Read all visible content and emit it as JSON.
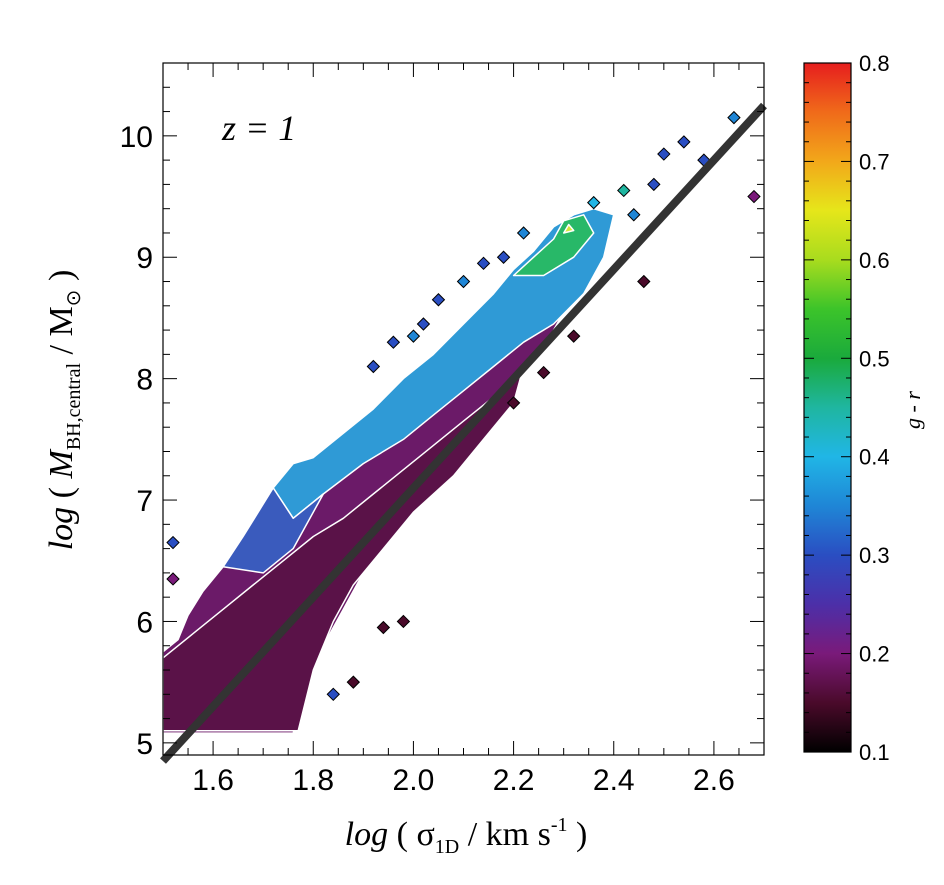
{
  "chart_data": {
    "type": "heatmap",
    "title": "",
    "annotation": "z = 1",
    "xlabel": {
      "prefix": "log",
      "open": " ( ",
      "symbol": "σ",
      "subscript": "1D",
      "unit": " / km s",
      "superscript": "-1",
      "close": " )"
    },
    "ylabel": {
      "prefix": "log",
      "open": " ( ",
      "symbol": "M",
      "subscript": "BH,central",
      "unit": " / M",
      "unit_symbol": "⊙",
      "close": " )"
    },
    "xlim": [
      1.5,
      2.7
    ],
    "ylim": [
      4.9,
      10.6
    ],
    "xticks": [
      1.6,
      1.8,
      2.0,
      2.2,
      2.4,
      2.6
    ],
    "xtick_labels": [
      "1.6",
      "1.8",
      "2.0",
      "2.2",
      "2.4",
      "2.6"
    ],
    "yticks": [
      5,
      6,
      7,
      8,
      9,
      10
    ],
    "ytick_labels": [
      "5",
      "6",
      "7",
      "8",
      "9",
      "10"
    ],
    "colorbar": {
      "label": "g - r",
      "range": [
        0.1,
        0.8
      ],
      "ticks": [
        0.1,
        0.2,
        0.3,
        0.4,
        0.5,
        0.6,
        0.7,
        0.8
      ],
      "tick_labels": [
        "0.1",
        "0.2",
        "0.3",
        "0.4",
        "0.5",
        "0.6",
        "0.7",
        "0.8"
      ],
      "colormap_stops": [
        {
          "value": 0.1,
          "color": "#000000"
        },
        {
          "value": 0.15,
          "color": "#4a0a2a"
        },
        {
          "value": 0.2,
          "color": "#7a1a7a"
        },
        {
          "value": 0.25,
          "color": "#4c2fa8"
        },
        {
          "value": 0.3,
          "color": "#2a4ec2"
        },
        {
          "value": 0.35,
          "color": "#1f86d6"
        },
        {
          "value": 0.4,
          "color": "#20b6e6"
        },
        {
          "value": 0.45,
          "color": "#1fb6a0"
        },
        {
          "value": 0.5,
          "color": "#1aaa3c"
        },
        {
          "value": 0.55,
          "color": "#3cc42a"
        },
        {
          "value": 0.6,
          "color": "#a8dc1e"
        },
        {
          "value": 0.65,
          "color": "#e6e61a"
        },
        {
          "value": 0.7,
          "color": "#f2a81a"
        },
        {
          "value": 0.75,
          "color": "#f06a1a"
        },
        {
          "value": 0.8,
          "color": "#e61e1e"
        }
      ]
    },
    "fit_line": {
      "x": [
        1.5,
        2.7
      ],
      "y": [
        4.85,
        10.25
      ],
      "color": "#333333"
    },
    "regions": [
      {
        "name": "red-sequence-body",
        "g_r": 0.17,
        "color": "#6b1a68",
        "polygon": [
          [
            1.5,
            5.75
          ],
          [
            1.53,
            5.85
          ],
          [
            1.55,
            6.05
          ],
          [
            1.58,
            6.25
          ],
          [
            1.62,
            6.45
          ],
          [
            1.66,
            6.7
          ],
          [
            1.7,
            6.95
          ],
          [
            1.75,
            7.15
          ],
          [
            1.8,
            7.35
          ],
          [
            1.86,
            7.5
          ],
          [
            1.92,
            7.65
          ],
          [
            1.98,
            7.8
          ],
          [
            2.04,
            7.95
          ],
          [
            2.1,
            8.1
          ],
          [
            2.16,
            8.3
          ],
          [
            2.22,
            8.55
          ],
          [
            2.28,
            8.85
          ],
          [
            2.33,
            9.1
          ],
          [
            2.37,
            9.2
          ],
          [
            2.34,
            8.9
          ],
          [
            2.3,
            8.55
          ],
          [
            2.26,
            8.25
          ],
          [
            2.2,
            7.95
          ],
          [
            2.14,
            7.6
          ],
          [
            2.08,
            7.3
          ],
          [
            2.02,
            7.0
          ],
          [
            1.96,
            6.8
          ],
          [
            1.9,
            6.4
          ],
          [
            1.86,
            6.1
          ],
          [
            1.82,
            5.8
          ],
          [
            1.78,
            5.4
          ],
          [
            1.76,
            5.08
          ],
          [
            1.5,
            5.08
          ]
        ]
      },
      {
        "name": "dark-core",
        "g_r": 0.13,
        "color": "#5a1248",
        "polygon": [
          [
            1.5,
            5.1
          ],
          [
            1.5,
            5.7
          ],
          [
            1.56,
            5.9
          ],
          [
            1.62,
            6.1
          ],
          [
            1.68,
            6.3
          ],
          [
            1.74,
            6.5
          ],
          [
            1.8,
            6.7
          ],
          [
            1.86,
            6.85
          ],
          [
            1.92,
            7.05
          ],
          [
            1.98,
            7.25
          ],
          [
            2.04,
            7.45
          ],
          [
            2.1,
            7.65
          ],
          [
            2.16,
            7.85
          ],
          [
            2.22,
            8.1
          ],
          [
            2.2,
            7.8
          ],
          [
            2.14,
            7.5
          ],
          [
            2.08,
            7.2
          ],
          [
            2.0,
            6.9
          ],
          [
            1.94,
            6.6
          ],
          [
            1.88,
            6.3
          ],
          [
            1.84,
            6.0
          ],
          [
            1.8,
            5.6
          ],
          [
            1.77,
            5.1
          ]
        ]
      },
      {
        "name": "blue-cloud",
        "g_r": 0.36,
        "color": "#2f9ad6",
        "polygon": [
          [
            1.72,
            7.1
          ],
          [
            1.76,
            7.3
          ],
          [
            1.8,
            7.35
          ],
          [
            1.86,
            7.55
          ],
          [
            1.92,
            7.75
          ],
          [
            1.98,
            8.0
          ],
          [
            2.04,
            8.2
          ],
          [
            2.1,
            8.45
          ],
          [
            2.16,
            8.7
          ],
          [
            2.2,
            8.9
          ],
          [
            2.24,
            9.05
          ],
          [
            2.28,
            9.25
          ],
          [
            2.32,
            9.35
          ],
          [
            2.36,
            9.4
          ],
          [
            2.4,
            9.35
          ],
          [
            2.38,
            9.0
          ],
          [
            2.34,
            8.7
          ],
          [
            2.28,
            8.45
          ],
          [
            2.22,
            8.3
          ],
          [
            2.16,
            8.1
          ],
          [
            2.1,
            7.9
          ],
          [
            2.04,
            7.7
          ],
          [
            1.98,
            7.5
          ],
          [
            1.9,
            7.3
          ],
          [
            1.82,
            7.05
          ],
          [
            1.76,
            6.85
          ]
        ]
      },
      {
        "name": "blue-edge",
        "g_r": 0.3,
        "color": "#3a5bbd",
        "polygon": [
          [
            1.62,
            6.45
          ],
          [
            1.66,
            6.7
          ],
          [
            1.72,
            7.1
          ],
          [
            1.76,
            6.85
          ],
          [
            1.82,
            7.05
          ],
          [
            1.76,
            6.6
          ],
          [
            1.7,
            6.4
          ]
        ]
      },
      {
        "name": "green-ridge",
        "g_r": 0.53,
        "color": "#28b868",
        "polygon": [
          [
            2.2,
            8.85
          ],
          [
            2.24,
            9.0
          ],
          [
            2.28,
            9.15
          ],
          [
            2.3,
            9.3
          ],
          [
            2.34,
            9.35
          ],
          [
            2.36,
            9.2
          ],
          [
            2.32,
            9.0
          ],
          [
            2.26,
            8.85
          ]
        ]
      },
      {
        "name": "yellow-spot",
        "g_r": 0.63,
        "color": "#d4e63a",
        "polygon": [
          [
            2.3,
            9.2
          ],
          [
            2.31,
            9.27
          ],
          [
            2.32,
            9.22
          ]
        ]
      }
    ],
    "sparse_cells": [
      {
        "x": 1.52,
        "y": 6.65,
        "g_r": 0.3
      },
      {
        "x": 1.52,
        "y": 6.35,
        "g_r": 0.17
      },
      {
        "x": 1.84,
        "y": 5.4,
        "g_r": 0.3
      },
      {
        "x": 1.92,
        "y": 8.1,
        "g_r": 0.28
      },
      {
        "x": 1.96,
        "y": 8.3,
        "g_r": 0.3
      },
      {
        "x": 2.0,
        "y": 8.35,
        "g_r": 0.32
      },
      {
        "x": 2.02,
        "y": 8.45,
        "g_r": 0.3
      },
      {
        "x": 2.05,
        "y": 8.65,
        "g_r": 0.28
      },
      {
        "x": 2.1,
        "y": 8.8,
        "g_r": 0.33
      },
      {
        "x": 2.14,
        "y": 8.95,
        "g_r": 0.3
      },
      {
        "x": 2.18,
        "y": 9.0,
        "g_r": 0.3
      },
      {
        "x": 2.22,
        "y": 9.2,
        "g_r": 0.35
      },
      {
        "x": 2.36,
        "y": 9.45,
        "g_r": 0.4
      },
      {
        "x": 2.42,
        "y": 9.55,
        "g_r": 0.45
      },
      {
        "x": 2.44,
        "y": 9.35,
        "g_r": 0.35
      },
      {
        "x": 2.48,
        "y": 9.6,
        "g_r": 0.3
      },
      {
        "x": 2.5,
        "y": 9.85,
        "g_r": 0.3
      },
      {
        "x": 2.54,
        "y": 9.95,
        "g_r": 0.3
      },
      {
        "x": 2.58,
        "y": 9.8,
        "g_r": 0.3
      },
      {
        "x": 2.64,
        "y": 10.15,
        "g_r": 0.35
      },
      {
        "x": 2.68,
        "y": 9.5,
        "g_r": 0.2
      },
      {
        "x": 2.46,
        "y": 8.8,
        "g_r": 0.15
      },
      {
        "x": 2.32,
        "y": 8.35,
        "g_r": 0.15
      },
      {
        "x": 2.26,
        "y": 8.05,
        "g_r": 0.15
      },
      {
        "x": 2.2,
        "y": 7.8,
        "g_r": 0.15
      },
      {
        "x": 1.98,
        "y": 6.0,
        "g_r": 0.15
      },
      {
        "x": 1.94,
        "y": 5.95,
        "g_r": 0.15
      },
      {
        "x": 1.88,
        "y": 5.5,
        "g_r": 0.15
      }
    ]
  }
}
